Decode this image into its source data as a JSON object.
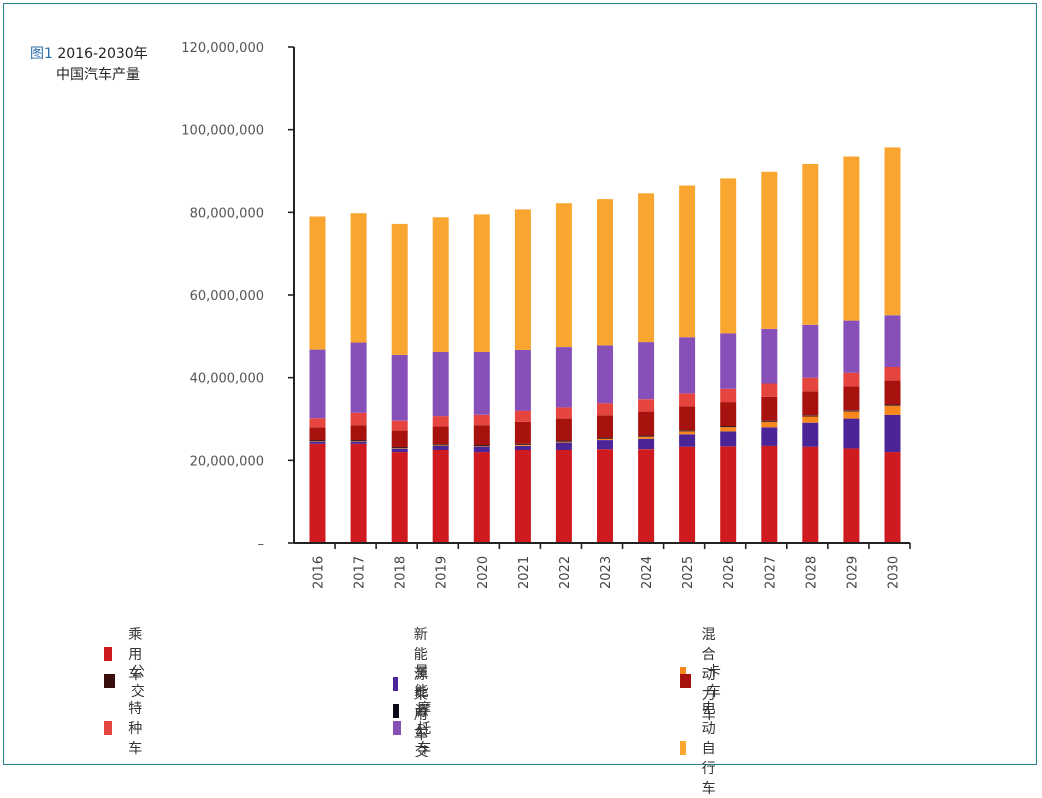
{
  "figure": {
    "fig_label": "图1",
    "title_line1": "2016-2030年",
    "title_line2": "中国汽车产量"
  },
  "chart_data": {
    "type": "bar",
    "stacked": true,
    "categories": [
      "2016",
      "2017",
      "2018",
      "2019",
      "2020",
      "2021",
      "2022",
      "2023",
      "2024",
      "2025",
      "2026",
      "2027",
      "2028",
      "2029",
      "2030"
    ],
    "ylim": [
      0,
      120000000
    ],
    "yticks": [
      0,
      20000000,
      40000000,
      60000000,
      80000000,
      100000000,
      120000000
    ],
    "ytick_labels": [
      "–",
      "20,000,000",
      "40,000,000",
      "60,000,000",
      "80,000,000",
      "100,000,000",
      "120,000,000"
    ],
    "legend_placement": "bottom",
    "series": [
      {
        "name": "乘用车",
        "color": "#cf1b20",
        "values": [
          24000000,
          24000000,
          22000000,
          22500000,
          22000000,
          22500000,
          22500000,
          22700000,
          22700000,
          23300000,
          23400000,
          23500000,
          23300000,
          22900000,
          22000000
        ]
      },
      {
        "name": "新能源乘用车",
        "color": "#4b2597",
        "values": [
          500000,
          500000,
          800000,
          1000000,
          1300000,
          1000000,
          1800000,
          2200000,
          2500000,
          3000000,
          3600000,
          4500000,
          5800000,
          7200000,
          9000000
        ]
      },
      {
        "name": "混合动力车",
        "color": "#f7861c",
        "values": [
          100000,
          100000,
          100000,
          100000,
          100000,
          200000,
          200000,
          300000,
          500000,
          700000,
          1000000,
          1300000,
          1500000,
          1700000,
          2200000
        ]
      },
      {
        "name": "公交",
        "color": "#3a0d0d",
        "values": [
          200000,
          200000,
          200000,
          200000,
          200000,
          200000,
          200000,
          200000,
          200000,
          200000,
          200000,
          200000,
          200000,
          200000,
          200000
        ]
      },
      {
        "name": "星能源公交",
        "color": "#0c0716",
        "values": [
          100000,
          100000,
          100000,
          100000,
          100000,
          100000,
          100000,
          100000,
          100000,
          100000,
          100000,
          100000,
          100000,
          100000,
          100000
        ]
      },
      {
        "name": "卡车",
        "color": "#a8120e",
        "values": [
          3100000,
          3600000,
          4000000,
          4300000,
          4800000,
          5300000,
          5300000,
          5400000,
          5800000,
          5800000,
          5800000,
          5800000,
          5800000,
          5800000,
          5800000
        ]
      },
      {
        "name": "特种车",
        "color": "#e5443f",
        "values": [
          2200000,
          3000000,
          2400000,
          2500000,
          2500000,
          2700000,
          2700000,
          2900000,
          3000000,
          3100000,
          3200000,
          3200000,
          3300000,
          3300000,
          3300000
        ]
      },
      {
        "name": "摩托车",
        "color": "#8650b8",
        "values": [
          16600000,
          17000000,
          15900000,
          15500000,
          15200000,
          14700000,
          14600000,
          14000000,
          13800000,
          13600000,
          13400000,
          13200000,
          12800000,
          12600000,
          12500000
        ]
      },
      {
        "name": "电动自行车",
        "color": "#f9a630",
        "values": [
          32200000,
          31300000,
          31700000,
          32600000,
          33300000,
          34000000,
          34800000,
          35400000,
          36000000,
          36700000,
          37500000,
          38000000,
          38900000,
          39700000,
          40600000
        ]
      }
    ]
  }
}
